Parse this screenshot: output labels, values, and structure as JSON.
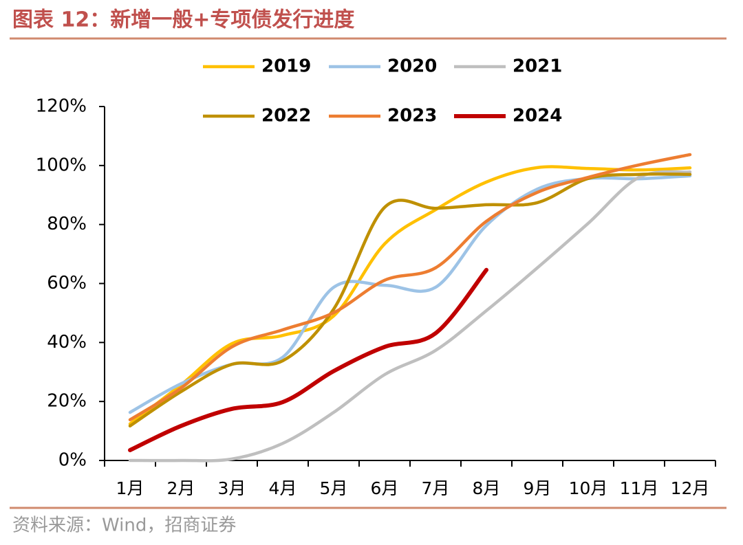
{
  "chart_data": {
    "type": "line",
    "title": "图表 12：新增一般+专项债发行进度",
    "source": "资料来源：Wind，招商证券",
    "categories": [
      "1月",
      "2月",
      "3月",
      "4月",
      "5月",
      "6月",
      "7月",
      "8月",
      "9月",
      "10月",
      "11月",
      "12月"
    ],
    "series": [
      {
        "name": "2019",
        "color": "#FFC000",
        "values": [
          12.4,
          25.6,
          39.6,
          42.4,
          49,
          73.4,
          85,
          94.4,
          99.3,
          99,
          98.5,
          99.2
        ]
      },
      {
        "name": "2020",
        "color": "#9DC3E6",
        "values": [
          16.3,
          26,
          32.6,
          35,
          58.7,
          59.4,
          58.7,
          79.7,
          92,
          95.6,
          95.5,
          96.5
        ]
      },
      {
        "name": "2021",
        "color": "#BFBFBF",
        "values": [
          0,
          0,
          0.5,
          5.8,
          16.3,
          29.1,
          37.3,
          50.8,
          65.3,
          80.4,
          96,
          97.8
        ]
      },
      {
        "name": "2022",
        "color": "#BF9000",
        "values": [
          11.7,
          23.3,
          32.6,
          33.8,
          51.3,
          85.8,
          85.5,
          86.7,
          87.4,
          95.6,
          97,
          97
        ]
      },
      {
        "name": "2023",
        "color": "#ED7D31",
        "values": [
          13.8,
          24.5,
          38.5,
          44.3,
          50.1,
          61.1,
          65.3,
          81.1,
          90.9,
          96,
          100.2,
          103.7
        ]
      },
      {
        "name": "2024",
        "color": "#C00000",
        "values": [
          3.5,
          11.7,
          17.5,
          19.8,
          30.3,
          38.5,
          43.1,
          64.6,
          null,
          null,
          null,
          null
        ]
      }
    ],
    "ylim": [
      0,
      120
    ],
    "yticks": [
      {
        "value": 0,
        "label": "0%"
      },
      {
        "value": 20,
        "label": "20%"
      },
      {
        "value": 40,
        "label": "40%"
      },
      {
        "value": 60,
        "label": "60%"
      },
      {
        "value": 80,
        "label": "80%"
      },
      {
        "value": 100,
        "label": "100%"
      },
      {
        "value": 120,
        "label": "120%"
      }
    ],
    "smooth": true
  }
}
